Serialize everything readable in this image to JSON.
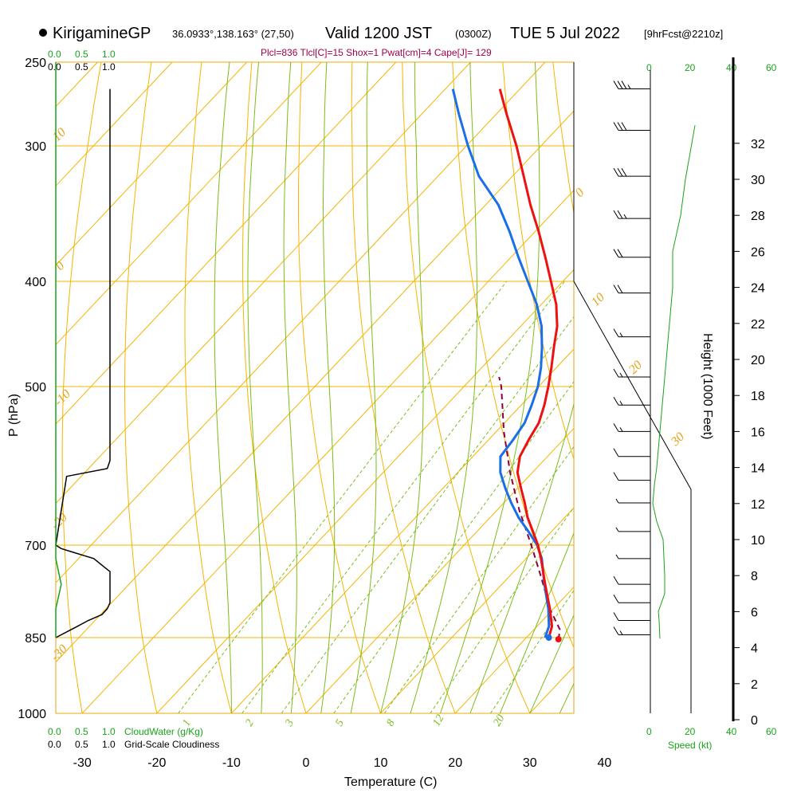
{
  "header": {
    "station": "KirigamineGP",
    "coords": "36.0933°,138.163° (27,50)",
    "valid": "Valid 1200 JST",
    "zulu": "(0300Z)",
    "date": "TUE 5 Jul 2022",
    "fcst": "[9hrFcst@2210z]",
    "params": "Plcl=836 Tlcl[C]=15 Shox=1 Pwat[cm]=4 Cape[J]= 129"
  },
  "left_panel": {
    "top_green_ticks": [
      "0.0",
      "0.5",
      "1.0"
    ],
    "top_black_ticks": [
      "0.0",
      "0.5",
      "1.0"
    ],
    "bottom_green_ticks": [
      "0.0",
      "0.5",
      "1.0"
    ],
    "bottom_black_ticks": [
      "0.0",
      "0.5",
      "1.0"
    ],
    "cloudwater_label": "CloudWater (g/Kg)",
    "cloudiness_label": "Grid-Scale Cloudiness"
  },
  "wind_panel": {
    "top_ticks": [
      "0",
      "20",
      "40"
    ],
    "top_ticks_right": [
      "20",
      "40",
      "60"
    ],
    "bottom_ticks": [
      "0",
      "20",
      "40",
      "60"
    ],
    "speed_label": "Speed (kt)"
  },
  "colors": {
    "isotherm": "#f5b400",
    "mixing": "#7bbd1a",
    "temp": "#ee1111",
    "dewp": "#1a6ee8",
    "parcel": "#8b0040",
    "speed": "#1aa31a"
  },
  "chart_data": {
    "type": "line",
    "skew_t": true,
    "title": "",
    "xlabel": "Temperature (C)",
    "ylabel": "P (hPa)",
    "y2label": "Height (1000 Feet)",
    "x_ticks": [
      -30,
      -20,
      -10,
      0,
      10,
      20,
      30,
      40
    ],
    "y_ticks": [
      250,
      300,
      400,
      500,
      700,
      850,
      1000
    ],
    "height_ticks": [
      0,
      2,
      4,
      6,
      8,
      10,
      12,
      14,
      16,
      18,
      20,
      22,
      24,
      26,
      28,
      30,
      32
    ],
    "isotherm_labels": [
      10,
      0,
      -10,
      -20,
      -30,
      0,
      10,
      20,
      30
    ],
    "mixing_ratio_labels": [
      "1",
      "2",
      "3",
      "5",
      "8",
      "12",
      "20"
    ],
    "series": [
      {
        "key": "temperature",
        "pressure": [
          850,
          830,
          800,
          760,
          720,
          700,
          680,
          660,
          640,
          620,
          600,
          580,
          560,
          540,
          520,
          500,
          480,
          460,
          440,
          420,
          400,
          380,
          360,
          340,
          320,
          300,
          280,
          265
        ],
        "values": [
          23.0,
          22.0,
          19.5,
          15.8,
          12.0,
          9.9,
          7.5,
          5.0,
          2.8,
          0.4,
          -2.0,
          -3.7,
          -4.6,
          -5.4,
          -6.9,
          -8.7,
          -10.7,
          -12.9,
          -15.1,
          -18.0,
          -21.6,
          -25.4,
          -29.5,
          -34.0,
          -38.5,
          -43.3,
          -48.6,
          -52.7
        ]
      },
      {
        "key": "dewpoint",
        "pressure": [
          850,
          830,
          800,
          760,
          720,
          700,
          680,
          660,
          640,
          620,
          600,
          580,
          560,
          540,
          520,
          500,
          480,
          460,
          440,
          420,
          400,
          380,
          360,
          340,
          320,
          300,
          280,
          265
        ],
        "values": [
          22.5,
          21.6,
          19.3,
          15.7,
          12.1,
          9.8,
          6.9,
          3.8,
          1.0,
          -1.7,
          -4.3,
          -6.3,
          -6.7,
          -7.3,
          -8.6,
          -10.1,
          -12.1,
          -14.5,
          -17.2,
          -20.6,
          -24.7,
          -29.0,
          -33.4,
          -38.3,
          -44.5,
          -49.8,
          -55.0,
          -59.0
        ]
      },
      {
        "key": "parcel",
        "pressure": [
          853,
          836,
          800,
          750,
          700,
          650,
          600,
          550,
          500,
          490
        ],
        "values": [
          24.5,
          23.5,
          19.5,
          14.5,
          9.0,
          3.0,
          -3.0,
          -9.0,
          -15.0,
          -16.5
        ]
      }
    ],
    "cloudiness": {
      "pressure": [
        265,
        585,
        595,
        605,
        700,
        705,
        710,
        715,
        720,
        730,
        740,
        790,
        800,
        810,
        820,
        830,
        840,
        850
      ],
      "values": [
        1.0,
        1.0,
        0.95,
        0.2,
        0.0,
        0.1,
        0.3,
        0.5,
        0.7,
        0.85,
        1.0,
        1.0,
        0.95,
        0.85,
        0.6,
        0.4,
        0.2,
        0.0
      ]
    },
    "cloudwater": {
      "pressure": [
        250,
        720,
        740,
        760,
        780,
        800,
        850
      ],
      "values": [
        0.0,
        0.0,
        0.05,
        0.1,
        0.05,
        0.0,
        0.0
      ]
    },
    "wind_barbs": [
      {
        "p": 265,
        "spd": 35,
        "dir": 270
      },
      {
        "p": 290,
        "spd": 30,
        "dir": 270
      },
      {
        "p": 320,
        "spd": 30,
        "dir": 270
      },
      {
        "p": 350,
        "spd": 25,
        "dir": 270
      },
      {
        "p": 380,
        "spd": 20,
        "dir": 270
      },
      {
        "p": 410,
        "spd": 20,
        "dir": 270
      },
      {
        "p": 450,
        "spd": 15,
        "dir": 260
      },
      {
        "p": 490,
        "spd": 15,
        "dir": 250
      },
      {
        "p": 520,
        "spd": 15,
        "dir": 220
      },
      {
        "p": 550,
        "spd": 15,
        "dir": 210
      },
      {
        "p": 580,
        "spd": 10,
        "dir": 200
      },
      {
        "p": 610,
        "spd": 10,
        "dir": 200
      },
      {
        "p": 640,
        "spd": 5,
        "dir": 190
      },
      {
        "p": 680,
        "spd": 5,
        "dir": 190
      },
      {
        "p": 720,
        "spd": 5,
        "dir": 200
      },
      {
        "p": 760,
        "spd": 10,
        "dir": 210
      },
      {
        "p": 790,
        "spd": 10,
        "dir": 215
      },
      {
        "p": 820,
        "spd": 10,
        "dir": 220
      },
      {
        "p": 845,
        "spd": 15,
        "dir": 225
      }
    ],
    "wind_speed": {
      "height_kft": [
        4.5,
        5.5,
        6.0,
        7.0,
        8.0,
        9.0,
        10.0,
        11.0,
        12.0,
        13.0,
        14.0,
        16.0,
        18.0,
        20.0,
        22.0,
        24.0,
        26.0,
        28.0,
        30.0,
        32.0,
        33.0
      ],
      "values": [
        12,
        11,
        10,
        18,
        18,
        17,
        16,
        8,
        3,
        5,
        8,
        12,
        16,
        20,
        24,
        28,
        28,
        38,
        44,
        52,
        56
      ]
    }
  }
}
